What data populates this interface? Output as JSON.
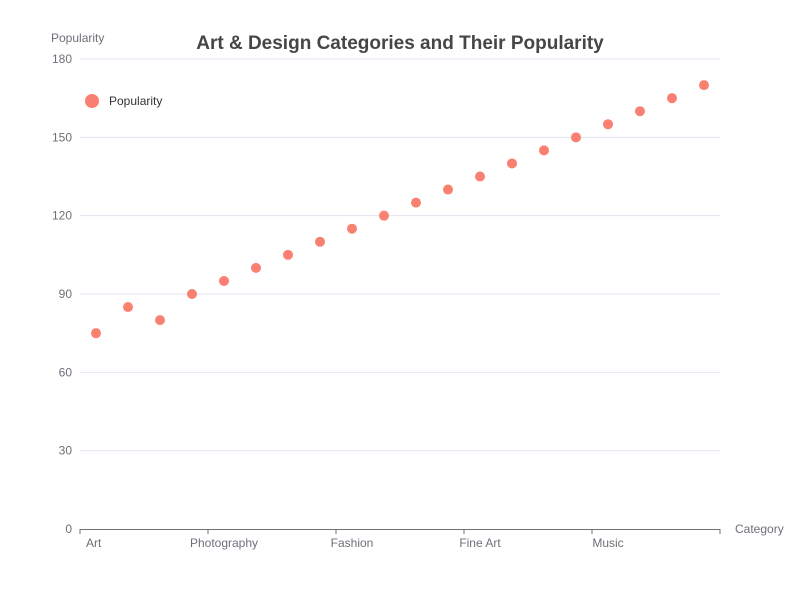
{
  "chart_data": {
    "type": "scatter",
    "title": "Art & Design Categories and Their Popularity",
    "xlabel": "Category",
    "ylabel": "Popularity",
    "ylim": [
      0,
      180
    ],
    "yticks": [
      0,
      30,
      60,
      90,
      120,
      150,
      180
    ],
    "x_tick_labels": [
      "Art",
      "Photography",
      "Fashion",
      "Fine Art",
      "Music"
    ],
    "grid": true,
    "legend_position": "top-left",
    "series": [
      {
        "name": "Popularity",
        "color": "#fa8072",
        "values": [
          75,
          85,
          80,
          90,
          95,
          100,
          105,
          110,
          115,
          120,
          125,
          130,
          135,
          140,
          145,
          150,
          155,
          160,
          165,
          170
        ]
      }
    ]
  }
}
